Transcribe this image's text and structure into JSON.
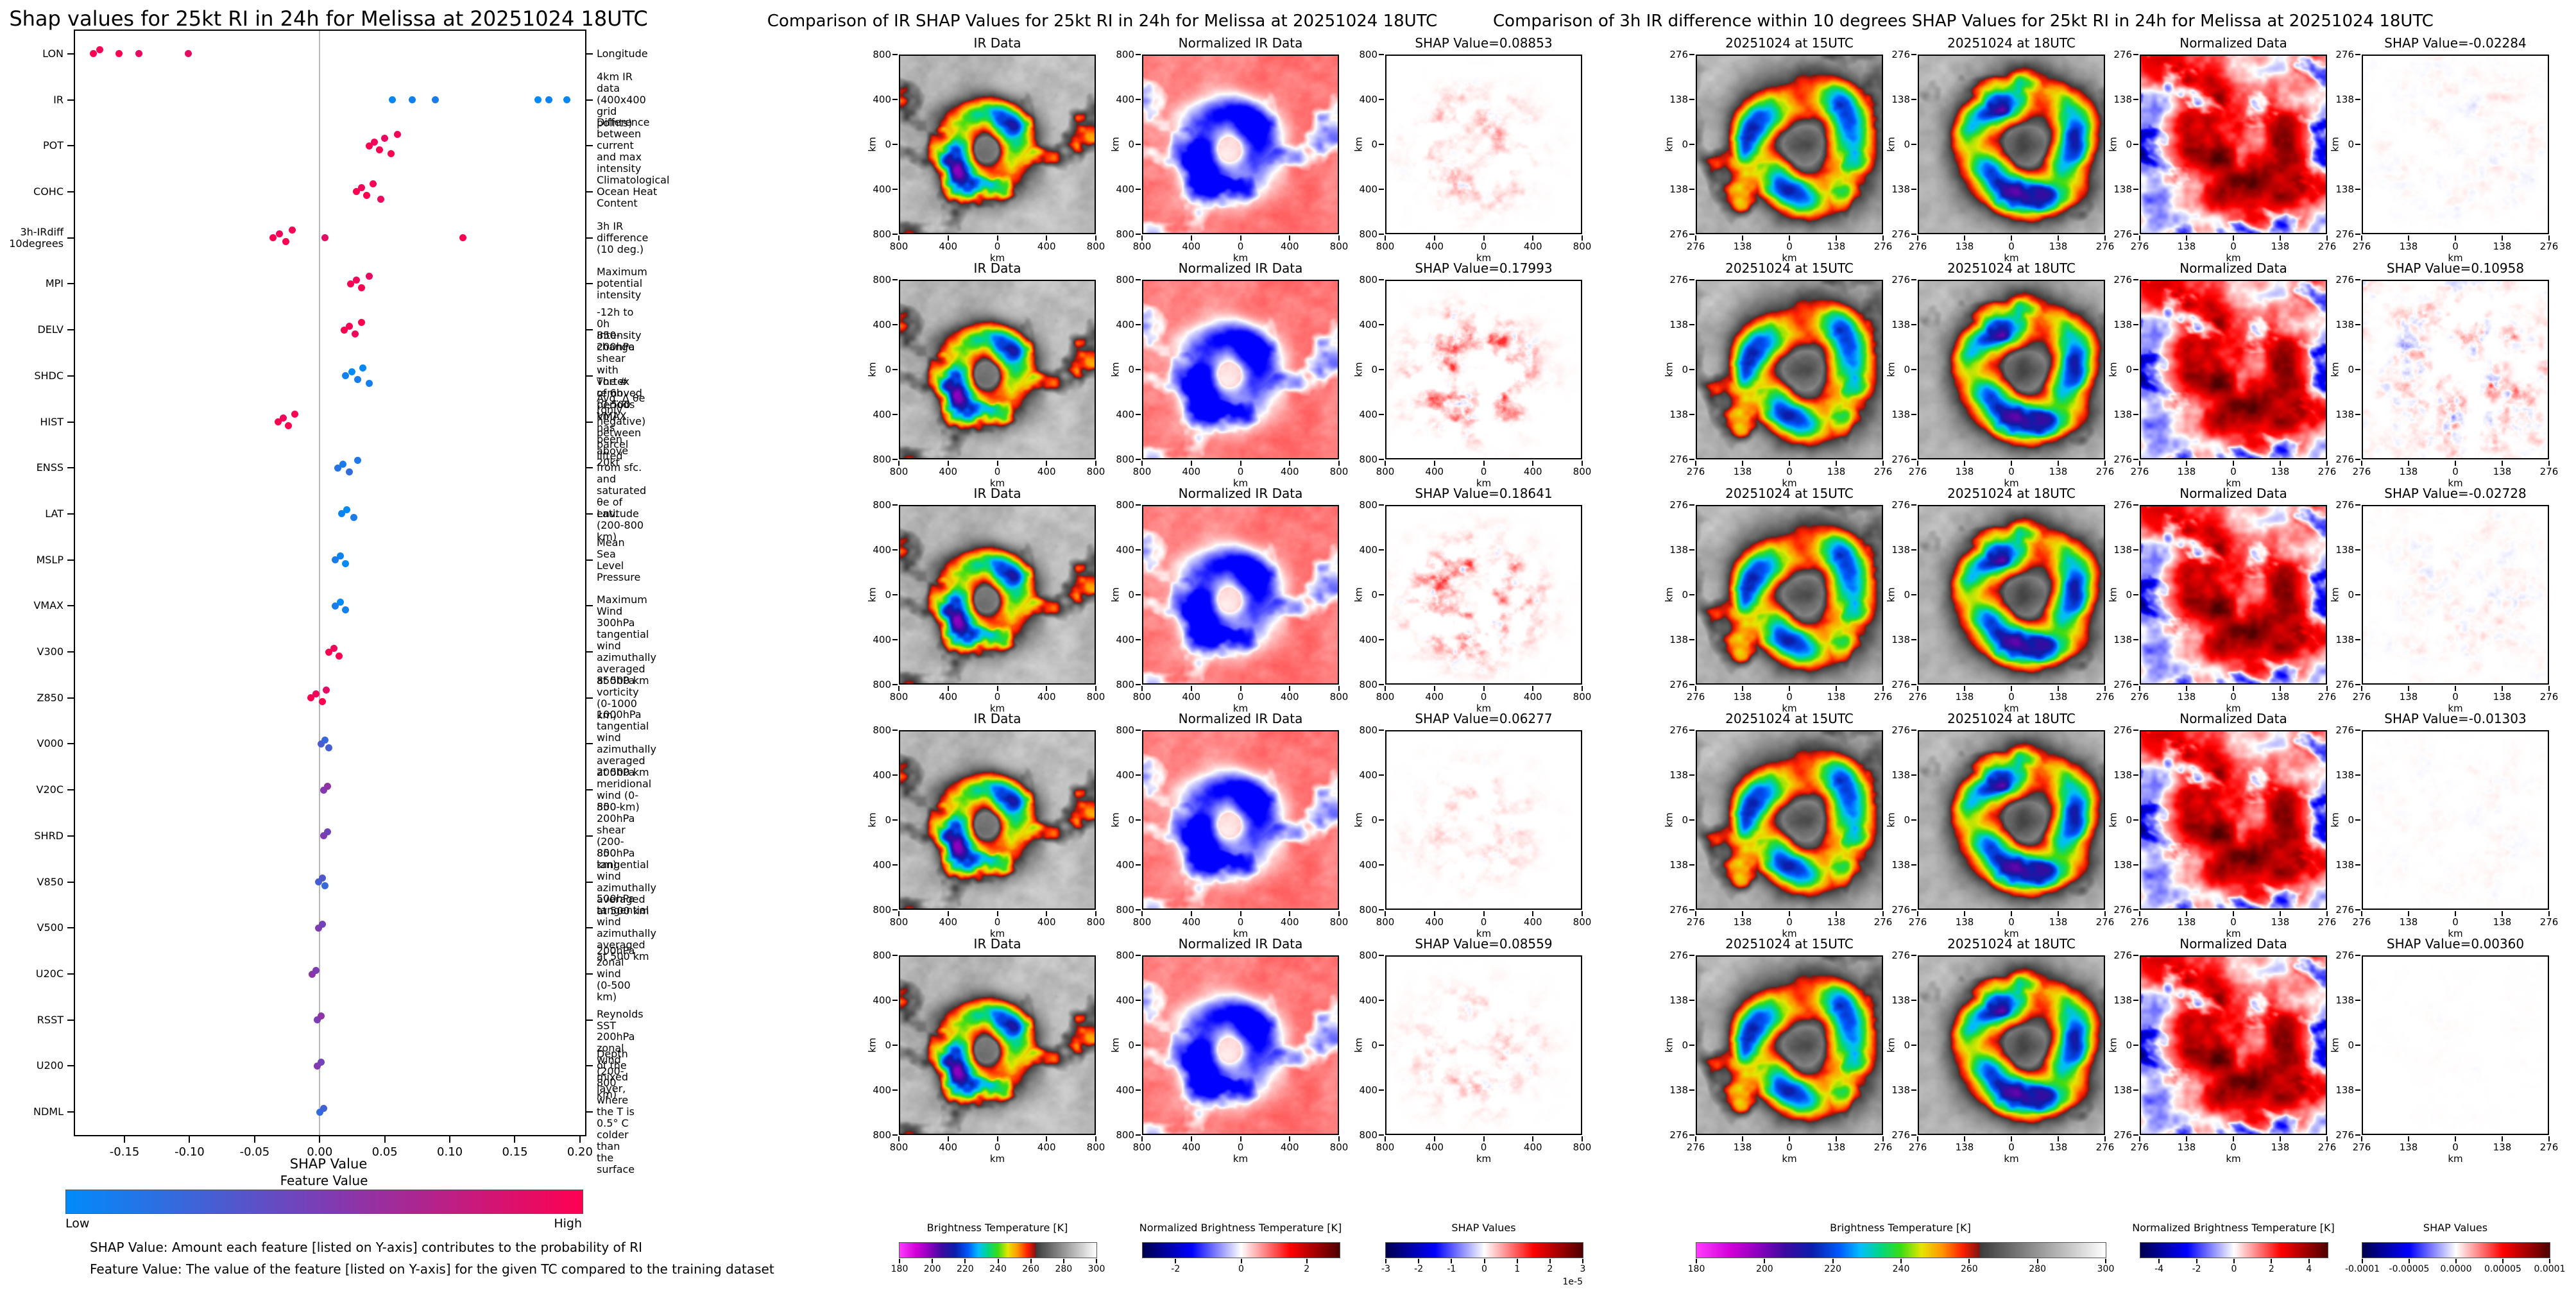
{
  "left_panel": {
    "title": "Shap values for 25kt RI in 24h for Melissa at 20251024 18UTC",
    "xlabel": "SHAP Value",
    "xticks": [
      -0.15,
      -0.1,
      -0.05,
      0.0,
      0.05,
      0.1,
      0.15,
      0.2
    ],
    "xtick_labels": [
      "-0.15",
      "-0.10",
      "-0.05",
      "0.00",
      "0.05",
      "0.10",
      "0.15",
      "0.20"
    ],
    "xlim": [
      -0.188,
      0.204
    ],
    "colorbar": {
      "title": "Feature Value",
      "low_label": "Low",
      "high_label": "High",
      "colors": [
        "#008bfb",
        "#7d3cb4",
        "#ff0051"
      ]
    },
    "footnotes": [
      "SHAP Value: Amount each feature [listed on Y-axis] contributes to the probability of RI",
      "Feature Value: The value of the feature [listed on Y-axis] for the given TC compared to the training dataset"
    ]
  },
  "middle_panel": {
    "title": "Comparison of IR SHAP Values for 25kt RI in 24h for Melissa at 20251024 18UTC",
    "axis_ticks": [
      "800",
      "400",
      "0",
      "400",
      "800"
    ],
    "axis_unit": "km",
    "rows": [
      {
        "titles": [
          "IR Data",
          "Normalized IR Data",
          "SHAP Value=0.08853"
        ],
        "shap": 0.08853
      },
      {
        "titles": [
          "IR Data",
          "Normalized IR Data",
          "SHAP Value=0.17993"
        ],
        "shap": 0.17993
      },
      {
        "titles": [
          "IR Data",
          "Normalized IR Data",
          "SHAP Value=0.18641"
        ],
        "shap": 0.18641
      },
      {
        "titles": [
          "IR Data",
          "Normalized IR Data",
          "SHAP Value=0.06277"
        ],
        "shap": 0.06277
      },
      {
        "titles": [
          "IR Data",
          "Normalized IR Data",
          "SHAP Value=0.08559"
        ],
        "shap": 0.08559
      }
    ],
    "colorbars": [
      {
        "title": "Brightness Temperature [K]",
        "ticks": [
          "180",
          "200",
          "220",
          "240",
          "260",
          "280",
          "300"
        ],
        "grad": "ir"
      },
      {
        "title": "Normalized Brightness Temperature [K]",
        "ticks": [
          "-2",
          "0",
          "2"
        ],
        "tick_pos": [
          0.167,
          0.5,
          0.833
        ],
        "grad": "seismic"
      },
      {
        "title": "SHAP Values",
        "ticks": [
          "-3",
          "-2",
          "-1",
          "0",
          "1",
          "2",
          "3"
        ],
        "grad": "seismic",
        "exp": "1e-5"
      }
    ]
  },
  "right_panel": {
    "title": "Comparison of 3h IR difference within 10 degrees SHAP Values for 25kt RI in 24h for Melissa at 20251024 18UTC",
    "axis_ticks": [
      "276",
      "138",
      "0",
      "138",
      "276"
    ],
    "axis_unit": "km",
    "rows": [
      {
        "titles": [
          "20251024 at 15UTC",
          "20251024 at 18UTC",
          "Normalized Data",
          "SHAP Value=-0.02284"
        ],
        "shap": -0.02284
      },
      {
        "titles": [
          "20251024 at 15UTC",
          "20251024 at 18UTC",
          "Normalized Data",
          "SHAP Value=0.10958"
        ],
        "shap": 0.10958
      },
      {
        "titles": [
          "20251024 at 15UTC",
          "20251024 at 18UTC",
          "Normalized Data",
          "SHAP Value=-0.02728"
        ],
        "shap": -0.02728
      },
      {
        "titles": [
          "20251024 at 15UTC",
          "20251024 at 18UTC",
          "Normalized Data",
          "SHAP Value=-0.01303"
        ],
        "shap": -0.01303
      },
      {
        "titles": [
          "20251024 at 15UTC",
          "20251024 at 18UTC",
          "Normalized Data",
          "SHAP Value=0.00360"
        ],
        "shap": 0.0036
      }
    ],
    "colorbars": [
      {
        "title": "Brightness Temperature [K]",
        "ticks": [
          "180",
          "200",
          "220",
          "240",
          "260",
          "280",
          "300"
        ],
        "grad": "ir"
      },
      {
        "title": "Normalized Brightness Temperature [K]",
        "ticks": [
          "-4",
          "-2",
          "0",
          "2",
          "4"
        ],
        "tick_pos": [
          0.1,
          0.3,
          0.5,
          0.7,
          0.9
        ],
        "grad": "seismic"
      },
      {
        "title": "SHAP Values",
        "ticks": [
          "-0.0001",
          "-0.00005",
          "0.0000",
          "0.00005",
          "0.0001"
        ],
        "grad": "seismic"
      }
    ]
  },
  "chart_data": [
    {
      "type": "scatter",
      "subtype": "shap-beeswarm",
      "title": "Shap values for 25kt RI in 24h for Melissa at 20251024 18UTC",
      "xlabel": "SHAP Value",
      "xlim": [
        -0.188,
        0.204
      ],
      "points_format": "[shap_value, normalized_feature_value_0low_1high]",
      "features": [
        {
          "name": "LON",
          "desc": "Longitude",
          "points": [
            [
              -0.174,
              1
            ],
            [
              -0.169,
              0.97
            ],
            [
              -0.154,
              1
            ],
            [
              -0.139,
              0.93
            ],
            [
              -0.101,
              0.9
            ]
          ]
        },
        {
          "name": "IR",
          "desc": "4km IR data (400x400 grid points)",
          "points": [
            [
              0.056,
              0.02
            ],
            [
              0.071,
              0.06
            ],
            [
              0.089,
              0.1
            ],
            [
              0.168,
              0
            ],
            [
              0.176,
              0.05
            ],
            [
              0.19,
              0.02
            ]
          ]
        },
        {
          "name": "POT",
          "desc": "Difference between current and max intensity",
          "points": [
            [
              0.038,
              1
            ],
            [
              0.042,
              0.96
            ],
            [
              0.046,
              1
            ],
            [
              0.05,
              0.92
            ],
            [
              0.055,
              1
            ],
            [
              0.06,
              0.97
            ]
          ]
        },
        {
          "name": "COHC",
          "desc": "Climatological Ocean Heat Content",
          "points": [
            [
              0.028,
              1
            ],
            [
              0.032,
              0.95
            ],
            [
              0.036,
              1
            ],
            [
              0.041,
              0.98
            ],
            [
              0.047,
              0.93
            ]
          ]
        },
        {
          "name": "3h-IRdiff\n10degrees",
          "desc": "3h IR difference (10 deg.)",
          "points": [
            [
              -0.036,
              1
            ],
            [
              -0.031,
              0.96
            ],
            [
              -0.026,
              1
            ],
            [
              -0.021,
              0.98
            ],
            [
              0.004,
              0.9
            ],
            [
              0.11,
              1
            ]
          ]
        },
        {
          "name": "MPI",
          "desc": "Maximum potential intensity",
          "points": [
            [
              0.024,
              1
            ],
            [
              0.028,
              0.95
            ],
            [
              0.032,
              1
            ],
            [
              0.038,
              0.92
            ]
          ]
        },
        {
          "name": "DELV",
          "desc": "-12h to 0h Intensity change",
          "points": [
            [
              0.019,
              1
            ],
            [
              0.023,
              0.97
            ],
            [
              0.027,
              0.94
            ],
            [
              0.032,
              1
            ]
          ]
        },
        {
          "name": "SHDC",
          "desc": "850-200hPa shear with\nvortex removed (0-500 km)",
          "points": [
            [
              0.02,
              0.06
            ],
            [
              0.025,
              0
            ],
            [
              0.029,
              0.1
            ],
            [
              0.033,
              0.03
            ],
            [
              0.038,
              0.08
            ]
          ]
        },
        {
          "name": "HIST",
          "desc": "The # of 6h periods VMAX has been above 20kt",
          "points": [
            [
              -0.032,
              1
            ],
            [
              -0.028,
              0.96
            ],
            [
              -0.024,
              1
            ],
            [
              -0.019,
              0.98
            ]
          ]
        },
        {
          "name": "ENSS",
          "desc": "Avg. Δ θe (only negative) between parcel lifted\nfrom sfc. and saturated θe of env. (200-800 km)",
          "points": [
            [
              0.014,
              0.15
            ],
            [
              0.018,
              0.1
            ],
            [
              0.023,
              0.2
            ],
            [
              0.029,
              0.12
            ]
          ]
        },
        {
          "name": "LAT",
          "desc": "Latitude",
          "points": [
            [
              0.017,
              0.05
            ],
            [
              0.021,
              0
            ],
            [
              0.026,
              0.1
            ]
          ]
        },
        {
          "name": "MSLP",
          "desc": "Mean Sea Level Pressure",
          "points": [
            [
              0.012,
              0.1
            ],
            [
              0.016,
              0.05
            ],
            [
              0.02,
              0
            ]
          ]
        },
        {
          "name": "VMAX",
          "desc": "Maximum Wind",
          "points": [
            [
              0.012,
              0.1
            ],
            [
              0.016,
              0
            ],
            [
              0.02,
              0.06
            ]
          ]
        },
        {
          "name": "V300",
          "desc": "300hPa tangential wind azimuthally\naveraged at 500 km",
          "points": [
            [
              0.007,
              1
            ],
            [
              0.011,
              0.95
            ],
            [
              0.015,
              1
            ]
          ]
        },
        {
          "name": "Z850",
          "desc": "850hPa vorticity (0-1000 km)",
          "points": [
            [
              -0.007,
              1
            ],
            [
              -0.003,
              0.94
            ],
            [
              0.002,
              1
            ],
            [
              0.005,
              0.9
            ]
          ]
        },
        {
          "name": "V000",
          "desc": "1000hPa tangential wind azimuthally\naveraged at 500 km",
          "points": [
            [
              0.001,
              0.3
            ],
            [
              0.004,
              0.22
            ],
            [
              0.007,
              0.28
            ]
          ]
        },
        {
          "name": "V20C",
          "desc": "200hPa meridional wind (0-500 km)",
          "points": [
            [
              0.003,
              0.52
            ],
            [
              0.006,
              0.58
            ]
          ]
        },
        {
          "name": "SHRD",
          "desc": "850-200hPa shear (200-800 km)",
          "points": [
            [
              0.003,
              0.5
            ],
            [
              0.006,
              0.45
            ]
          ]
        },
        {
          "name": "V850",
          "desc": "850hPa tangential wind azimuthally\naveraged at 500 km",
          "points": [
            [
              -0.001,
              0.28
            ],
            [
              0.002,
              0.32
            ],
            [
              0.004,
              0.22
            ]
          ]
        },
        {
          "name": "V500",
          "desc": "500hPa tangential wind azimuthally\naveraged at 500 km",
          "points": [
            [
              -0.001,
              0.5
            ],
            [
              0.002,
              0.46
            ]
          ]
        },
        {
          "name": "U20C",
          "desc": "200hPa zonal wind (0-500 km)",
          "points": [
            [
              -0.006,
              0.55
            ],
            [
              -0.003,
              0.5
            ]
          ]
        },
        {
          "name": "RSST",
          "desc": "Reynolds SST",
          "points": [
            [
              -0.002,
              0.5
            ],
            [
              0.001,
              0.56
            ]
          ]
        },
        {
          "name": "U200",
          "desc": "200hPa zonal wind (200-800 km)",
          "points": [
            [
              -0.002,
              0.52
            ],
            [
              0.001,
              0.46
            ]
          ]
        },
        {
          "name": "NDML",
          "desc": "Depth of the mixed layer,\nwhere the T is 0.5° C colder than the surface",
          "points": [
            [
              0.0,
              0.2
            ],
            [
              0.003,
              0.26
            ]
          ]
        }
      ]
    },
    {
      "type": "heatmap",
      "title": "Comparison of IR SHAP Values for 25kt RI in 24h for Melissa at 20251024 18UTC",
      "columns": [
        "IR Data",
        "Normalized IR Data",
        "SHAP Value"
      ],
      "axis_range_km": [
        -800,
        800
      ],
      "row_shap_values": [
        0.08853,
        0.17993,
        0.18641,
        0.06277,
        0.08559
      ]
    },
    {
      "type": "heatmap",
      "title": "Comparison of 3h IR difference within 10 degrees SHAP Values for 25kt RI in 24h for Melissa at 20251024 18UTC",
      "columns": [
        "20251024 at 15UTC",
        "20251024 at 18UTC",
        "Normalized Data",
        "SHAP Value"
      ],
      "axis_range_km": [
        -276,
        276
      ],
      "row_shap_values": [
        -0.02284,
        0.10958,
        -0.02728,
        -0.01303,
        0.0036
      ]
    }
  ]
}
